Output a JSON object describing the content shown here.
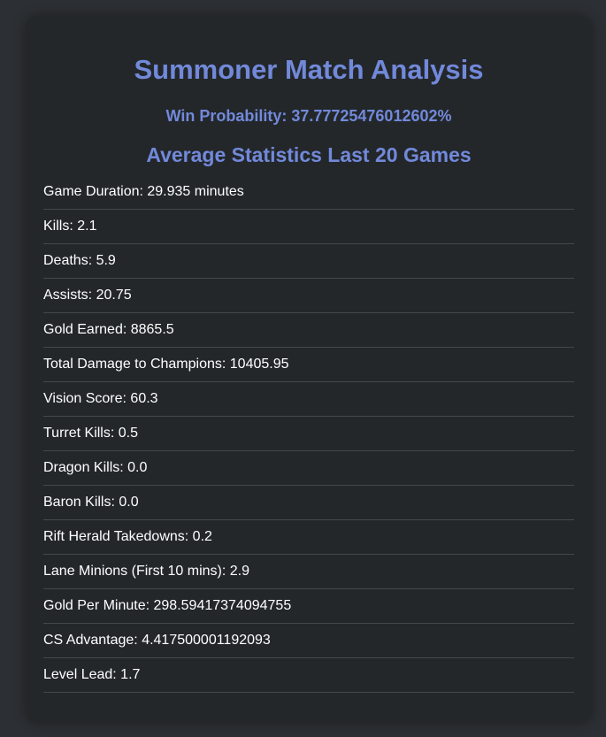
{
  "title": "Summoner Match Analysis",
  "win_probability": "Win Probability: 37.77725476012602%",
  "subtitle": "Average Statistics Last 20 Games",
  "stats": [
    "Game Duration: 29.935 minutes",
    "Kills: 2.1",
    "Deaths: 5.9",
    "Assists: 20.75",
    "Gold Earned: 8865.5",
    "Total Damage to Champions: 10405.95",
    "Vision Score: 60.3",
    "Turret Kills: 0.5",
    "Dragon Kills: 0.0",
    "Baron Kills: 0.0",
    "Rift Herald Takedowns: 0.2",
    "Lane Minions (First 10 mins): 2.9",
    "Gold Per Minute: 298.59417374094755",
    "CS Advantage: 4.417500001192093",
    "Level Lead: 1.7"
  ],
  "colors": {
    "background": "#2c2f33",
    "card": "#23272a",
    "accent": "#7289da",
    "text": "#ffffff",
    "divider": "#44484d"
  }
}
